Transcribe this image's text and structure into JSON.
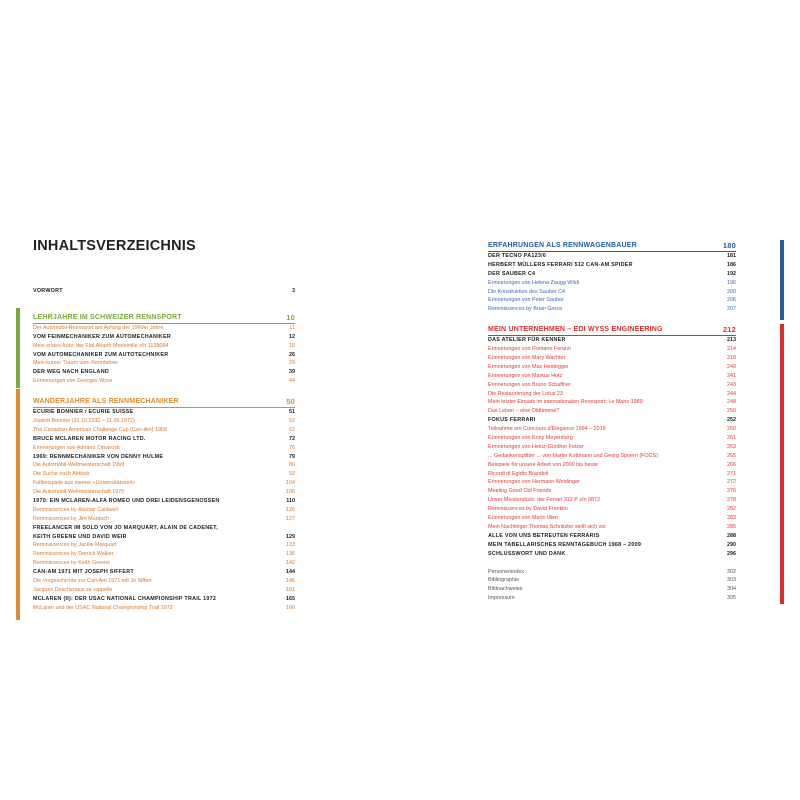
{
  "title": "INHALTSVERZEICHNIS",
  "colors": {
    "green": "#7aab3a",
    "orange": "#e08a2c",
    "blue": "#1f5fa8",
    "red": "#e02d2d"
  },
  "left": {
    "vorwort": {
      "t": "VORWORT",
      "p": "3"
    },
    "sections": [
      {
        "title": "LEHRJAHRE IM SCHWEIZER RENNSPORT",
        "page": "10",
        "color": "#7aab3a",
        "items": [
          {
            "t": "Der Automobil-Rennsport am Anfang der 1960er Jahre",
            "p": "11",
            "kind": "sub"
          },
          {
            "t": "VOM FEINMECHANIKER ZUM AUTOMECHANIKER",
            "p": "12",
            "kind": "bold"
          },
          {
            "t": "Mein erstes Auto: der Fiat Abarth Monomille s/n 1128084",
            "p": "18",
            "kind": "sub"
          },
          {
            "t": "VOM AUTOMECHANIKER ZUM AUTOTECHNIKER",
            "p": "26",
            "kind": "bold"
          },
          {
            "t": "Mein kurzer Traum vom Rennfahrer",
            "p": "29",
            "kind": "sub"
          },
          {
            "t": "DER WEG NACH ENGLAND",
            "p": "39",
            "kind": "bold"
          },
          {
            "t": "Erinnerungen von Georges Wyss",
            "p": "44",
            "kind": "sub"
          }
        ]
      },
      {
        "title": "WANDERJAHRE ALS RENNMECHANIKER",
        "page": "50",
        "color": "#e08a2c",
        "items": [
          {
            "t": "ECURIE BONNIER / ECURIE SUISSE",
            "p": "51",
            "kind": "bold"
          },
          {
            "t": "Joakim Bonnier (31.10.1930 – 11.06.1972)",
            "p": "52",
            "kind": "sub"
          },
          {
            "t": "The Canadian-American Challenge Cup (Can-Am) 1968",
            "p": "62",
            "kind": "sub"
          },
          {
            "t": "BRUCE MCLAREN MOTOR RACING LTD.",
            "p": "72",
            "kind": "bold"
          },
          {
            "t": "Erinnerungen von Adriano Cimarosti",
            "p": "76",
            "kind": "sub"
          },
          {
            "t": "1969: RENNMECHANIKER VON DENNY HULME",
            "p": "79",
            "kind": "bold"
          },
          {
            "t": "Die Automobil-Weltmeisterschaft 1969",
            "p": "80",
            "kind": "sub"
          },
          {
            "t": "Die Suche nach Abtrieb",
            "p": "92",
            "kind": "sub"
          },
          {
            "t": "Fallbeispiele aus meiner «Universitätszeit»",
            "p": "104",
            "kind": "sub"
          },
          {
            "t": "Die Automobil-Weltmeisterschaft 1970",
            "p": "106",
            "kind": "sub"
          },
          {
            "t": "1970: EIN MCLAREN-ALFA ROMEO UND DREI LEIDENSGENOSSEN",
            "p": "110",
            "kind": "bold"
          },
          {
            "t": "Reminiscences by Alastair Caldwell",
            "p": "126",
            "kind": "sub"
          },
          {
            "t": "Reminiscences by Jim Murdoch",
            "p": "127",
            "kind": "sub"
          },
          {
            "t": "FREELANCER IM SOLD VON JO MARQUART, ALAIN DE CADENET,",
            "p": "",
            "kind": "bold"
          },
          {
            "t": "KEITH GREENE UND DAVID WEIR",
            "p": "129",
            "kind": "bold"
          },
          {
            "t": "Reminiscences by Jackie Marquart",
            "p": "133",
            "kind": "sub"
          },
          {
            "t": "Reminiscences by Derrick Walker",
            "p": "136",
            "kind": "sub"
          },
          {
            "t": "Reminiscences by Keith Greene",
            "p": "142",
            "kind": "sub"
          },
          {
            "t": "CAN-AM 1971 MIT JOSEPH SIFFERT",
            "p": "144",
            "kind": "bold"
          },
          {
            "t": "Die Vorgeschichte zur Can-Am 1971 mit Jo Siffert",
            "p": "146",
            "kind": "sub"
          },
          {
            "t": "Jacques Deschenaux se rappelle",
            "p": "161",
            "kind": "sub"
          },
          {
            "t": "MCLAREN (II): DER USAC NATIONAL CHAMPIONSHIP TRAIL 1972",
            "p": "165",
            "kind": "bold"
          },
          {
            "t": "McLaren und der USAC National Championship Trail 1972",
            "p": "166",
            "kind": "sub"
          }
        ]
      }
    ]
  },
  "right": {
    "sections": [
      {
        "title": "ERFAHRUNGEN ALS RENNWAGENBAUER",
        "page": "180",
        "color": "#1f5fa8",
        "subkind": "sub-blue",
        "items": [
          {
            "t": "DER TECNO PA123/6",
            "p": "181",
            "kind": "bold"
          },
          {
            "t": "HERBERT MÜLLERS FERRARI 512 CAN-AM SPIDER",
            "p": "186",
            "kind": "bold"
          },
          {
            "t": "DER SAUBER C4",
            "p": "192",
            "kind": "bold"
          },
          {
            "t": "Erinnerungen von Helena Zaugg Wildi",
            "p": "196",
            "kind": "sub-blue"
          },
          {
            "t": "Die Konstruktion des Sauber C4",
            "p": "200",
            "kind": "sub-blue"
          },
          {
            "t": "Erinnerungen von Peter Sauber",
            "p": "206",
            "kind": "sub-blue"
          },
          {
            "t": "Reminiscences by Brian Groza",
            "p": "207",
            "kind": "sub-blue"
          }
        ]
      },
      {
        "title": "MEIN UNTERNEHMEN – EDI WYSS ENGINEERING",
        "page": "212",
        "color": "#e02d2d",
        "subkind": "sub-red",
        "items": [
          {
            "t": "DAS ATELIER FÜR KENNER",
            "p": "213",
            "kind": "bold"
          },
          {
            "t": "Erinnerungen von Romano Ferarzi",
            "p": "214",
            "kind": "sub-red"
          },
          {
            "t": "Erinnerungen von Mary Wachter",
            "p": "218",
            "kind": "sub-red"
          },
          {
            "t": "Erinnerungen von Max Heidegger",
            "p": "240",
            "kind": "sub-red"
          },
          {
            "t": "Erinnerungen von Markus Hotz",
            "p": "241",
            "kind": "sub-red"
          },
          {
            "t": "Erinnerungen von Bruno Schaffner",
            "p": "243",
            "kind": "sub-red"
          },
          {
            "t": "Die Restaurierung der Lotus 23",
            "p": "244",
            "kind": "sub-red"
          },
          {
            "t": "Mein letzter Einsatz im internationalen Rennsport: Le Mans 1989",
            "p": "248",
            "kind": "sub-red"
          },
          {
            "t": "Das Leben – eine Oldtimerei?",
            "p": "250",
            "kind": "sub-red"
          },
          {
            "t": "FOKUS FERRARI",
            "p": "252",
            "kind": "bold"
          },
          {
            "t": "Teilnahme am Concours d'Elegance 1994 – 2019",
            "p": "260",
            "kind": "sub-red"
          },
          {
            "t": "Erinnerungen von Kony Meyenberg",
            "p": "261",
            "kind": "sub-red"
          },
          {
            "t": "Erinnerungen von Heinz-Günther Fetzer",
            "p": "263",
            "kind": "sub-red"
          },
          {
            "t": "... Gedankensplitter ... von Martin Kottmann und Georg Spoerri (FOCS)",
            "p": "265",
            "kind": "sub-red"
          },
          {
            "t": "Beispiele für unsere Arbeit von 2000 bis heute",
            "p": "266",
            "kind": "sub-red"
          },
          {
            "t": "Ricordi di Egidio Brandoli",
            "p": "271",
            "kind": "sub-red"
          },
          {
            "t": "Erinnerungen von Hermann Weidinger",
            "p": "272",
            "kind": "sub-red"
          },
          {
            "t": "Meeting Good Old Friends",
            "p": "276",
            "kind": "sub-red"
          },
          {
            "t": "Unser Meisterstück: der Ferrari 312 P s/n 0872",
            "p": "278",
            "kind": "sub-red"
          },
          {
            "t": "Reminiscences by David Franklin",
            "p": "282",
            "kind": "sub-red"
          },
          {
            "t": "Erinnerungen von Mario Illien",
            "p": "283",
            "kind": "sub-red"
          },
          {
            "t": "Mein Nachfolger Thomas Schnitzler stellt sich vor",
            "p": "285",
            "kind": "sub-red"
          },
          {
            "t": "ALLE VON UNS BETREUTEN FERRARIS",
            "p": "288",
            "kind": "bold"
          },
          {
            "t": "MEIN TABELLARISCHES RENNTAGEBUCH 1968 – 2009",
            "p": "290",
            "kind": "bold"
          },
          {
            "t": "SCHLUSSWORT UND DANK",
            "p": "296",
            "kind": "bold"
          }
        ]
      }
    ],
    "appendix": [
      {
        "t": "Personenindex",
        "p": "302"
      },
      {
        "t": "Bibliographie",
        "p": "303"
      },
      {
        "t": "Bildnachweise",
        "p": "304"
      },
      {
        "t": "Impressum",
        "p": "305"
      }
    ]
  }
}
